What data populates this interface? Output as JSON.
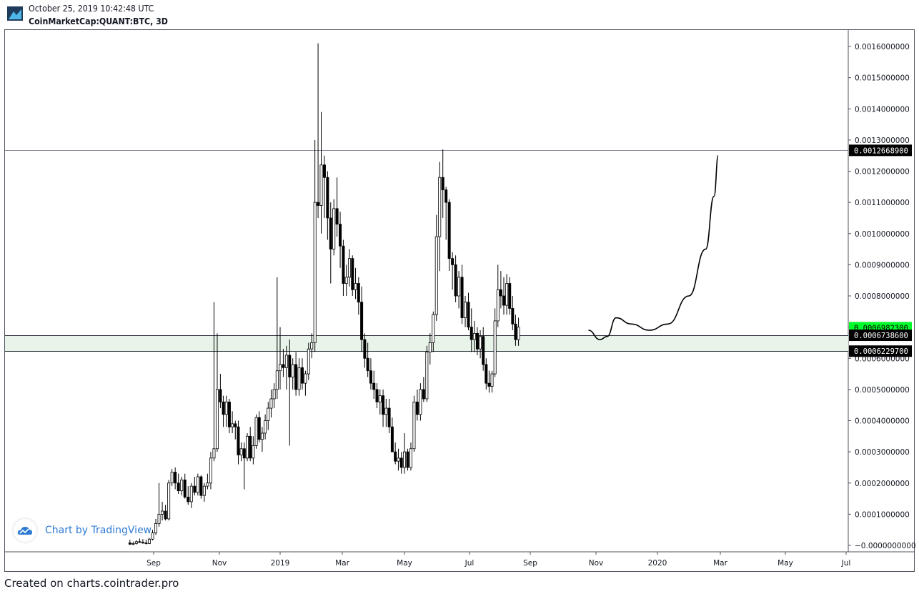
{
  "header": {
    "timestamp": "October 25, 2019 10:42:48 UTC",
    "symbol": "CoinMarketCap:QUANT:BTC, 3D"
  },
  "watermark": {
    "text": "Chart by TradingView",
    "icon": "tradingview-cloud-icon"
  },
  "footer": {
    "text": "Created on charts.cointrader.pro"
  },
  "colors": {
    "candle": "#000000",
    "zone_fill": "#e8f4ea",
    "line": "#787b86",
    "current_price_bg": "#00ff2a",
    "label_bg": "#000000"
  },
  "chart_data": {
    "type": "candlestick",
    "title": "",
    "xlabel": "",
    "ylabel": "",
    "ylim": [
      -1e-05,
      0.00163
    ],
    "y_ticks": [
      "0.0016000000",
      "0.0015000000",
      "0.0014000000",
      "0.0013000000",
      "0.0012000000",
      "0.0011000000",
      "0.0010000000",
      "0.0009000000",
      "0.0008000000",
      "0.0007000000",
      "0.0006000000",
      "0.0005000000",
      "0.0004000000",
      "0.0003000000",
      "0.0002000000",
      "0.0001000000",
      "−0.0000000000"
    ],
    "y_tick_values": [
      0.0016,
      0.0015,
      0.0014,
      0.0013,
      0.0012,
      0.0011,
      0.001,
      0.0009,
      0.0008,
      0.0007,
      0.0006,
      0.0005,
      0.0004,
      0.0003,
      0.0002,
      0.0001,
      0
    ],
    "x_ticks": [
      "Sep",
      "Nov",
      "2019",
      "Mar",
      "May",
      "Jul",
      "Sep",
      "Nov",
      "2020",
      "Mar",
      "May",
      "Jul"
    ],
    "x_tick_dates": [
      "2018-09-01",
      "2018-11-01",
      "2019-01-01",
      "2019-03-01",
      "2019-05-01",
      "2019-07-01",
      "2019-09-01",
      "2019-11-01",
      "2020-01-01",
      "2020-03-01",
      "2020-05-01",
      "2020-07-01"
    ],
    "horizontal_levels": [
      {
        "value": 0.00126689,
        "label": "0.0012668900"
      },
      {
        "value": 0.00067386,
        "label": "0.0006738600"
      },
      {
        "value": 0.00062297,
        "label": "0.0006229700"
      }
    ],
    "current_price": {
      "value": 0.00069823,
      "label": "0.0006982300"
    },
    "support_zone": [
      0.00062297,
      0.00067386
    ],
    "candles": [
      [
        "2018-08-10",
        8e-06,
        1.8e-05,
        1e-06,
        4e-06
      ],
      [
        "2018-08-13",
        4e-06,
        1.2e-05,
        1e-06,
        6e-06
      ],
      [
        "2018-08-16",
        6e-06,
        1.6e-05,
        3e-06,
        1.2e-05
      ],
      [
        "2018-08-19",
        1.2e-05,
        2.2e-05,
        8e-06,
        1e-05
      ],
      [
        "2018-08-22",
        1e-05,
        2e-05,
        5e-06,
        8e-06
      ],
      [
        "2018-08-25",
        8e-06,
        1.8e-05,
        3e-06,
        6e-06
      ],
      [
        "2018-08-28",
        6e-06,
        2.4e-05,
        4e-06,
        2e-05
      ],
      [
        "2018-08-31",
        2e-05,
        5e-05,
        1.6e-05,
        4e-05
      ],
      [
        "2018-09-03",
        4e-05,
        8.5e-05,
        3.4e-05,
        7e-05
      ],
      [
        "2018-09-06",
        7e-05,
        0.0002,
        6e-05,
        0.0001
      ],
      [
        "2018-09-09",
        0.0001,
        0.00014,
        8e-05,
        0.00011
      ],
      [
        "2018-09-12",
        0.00011,
        0.00013,
        8e-05,
        8.5e-05
      ],
      [
        "2018-09-15",
        8.5e-05,
        0.00021,
        8e-05,
        0.0002
      ],
      [
        "2018-09-18",
        0.0002,
        0.000245,
        0.00019,
        0.000235
      ],
      [
        "2018-09-21",
        0.000235,
        0.00025,
        0.00018,
        0.0002
      ],
      [
        "2018-09-24",
        0.0002,
        0.00023,
        0.000165,
        0.000175
      ],
      [
        "2018-09-27",
        0.000175,
        0.00022,
        0.00016,
        0.00021
      ],
      [
        "2018-09-30",
        0.00021,
        0.00023,
        0.00015,
        0.000155
      ],
      [
        "2018-10-03",
        0.000155,
        0.00019,
        0.00013,
        0.00014
      ],
      [
        "2018-10-06",
        0.00014,
        0.0002,
        0.00012,
        0.00019
      ],
      [
        "2018-10-09",
        0.00019,
        0.00022,
        0.00016,
        0.00017
      ],
      [
        "2018-10-12",
        0.00017,
        0.00023,
        0.00016,
        0.00022
      ],
      [
        "2018-10-15",
        0.00022,
        0.000225,
        0.00015,
        0.00016
      ],
      [
        "2018-10-18",
        0.00016,
        0.0002,
        0.00014,
        0.00019
      ],
      [
        "2018-10-21",
        0.00019,
        0.00023,
        0.00018,
        0.0002
      ],
      [
        "2018-10-24",
        0.0002,
        0.0003,
        0.00018,
        0.00028
      ],
      [
        "2018-10-27",
        0.00028,
        0.00078,
        0.00027,
        0.00031
      ],
      [
        "2018-10-30",
        0.00031,
        0.00068,
        0.0003,
        0.0005
      ],
      [
        "2018-11-02",
        0.0005,
        0.00055,
        0.00044,
        0.00046
      ],
      [
        "2018-11-05",
        0.00046,
        0.00048,
        0.00038,
        0.00042
      ],
      [
        "2018-11-08",
        0.00042,
        0.00048,
        0.00038,
        0.00046
      ],
      [
        "2018-11-11",
        0.00046,
        0.00047,
        0.00036,
        0.00038
      ],
      [
        "2018-11-14",
        0.00038,
        0.00043,
        0.00036,
        0.00039
      ],
      [
        "2018-11-17",
        0.00039,
        0.0004,
        0.00034,
        0.00038
      ],
      [
        "2018-11-20",
        0.00038,
        0.0004,
        0.00026,
        0.00029
      ],
      [
        "2018-11-23",
        0.00029,
        0.00033,
        0.00027,
        0.00031
      ],
      [
        "2018-11-26",
        0.00031,
        0.00033,
        0.00018,
        0.00028
      ],
      [
        "2018-11-29",
        0.00028,
        0.00036,
        0.00027,
        0.00035
      ],
      [
        "2018-12-02",
        0.00035,
        0.00038,
        0.00027,
        0.00028
      ],
      [
        "2018-12-05",
        0.00028,
        0.00035,
        0.00026,
        0.00032
      ],
      [
        "2018-12-08",
        0.00032,
        0.00042,
        0.00031,
        0.00041
      ],
      [
        "2018-12-11",
        0.00041,
        0.00043,
        0.00033,
        0.00034
      ],
      [
        "2018-12-14",
        0.00034,
        0.00038,
        0.0003,
        0.00036
      ],
      [
        "2018-12-17",
        0.00036,
        0.00042,
        0.00034,
        0.0004
      ],
      [
        "2018-12-20",
        0.0004,
        0.00046,
        0.00037,
        0.00044
      ],
      [
        "2018-12-23",
        0.00044,
        0.0005,
        0.00041,
        0.00047
      ],
      [
        "2018-12-26",
        0.00047,
        0.00052,
        0.00044,
        0.0005
      ],
      [
        "2018-12-29",
        0.0005,
        0.00086,
        0.00047,
        0.00056
      ],
      [
        "2019-01-01",
        0.00056,
        0.0007,
        0.0005,
        0.00058
      ],
      [
        "2019-01-04",
        0.00058,
        0.00063,
        0.00054,
        0.00057
      ],
      [
        "2019-01-07",
        0.00057,
        0.00064,
        0.0005,
        0.00061
      ],
      [
        "2019-01-10",
        0.00061,
        0.00066,
        0.00032,
        0.00054
      ],
      [
        "2019-01-13",
        0.00054,
        0.0006,
        0.0005,
        0.00058
      ],
      [
        "2019-01-16",
        0.00058,
        0.00062,
        0.00048,
        0.0005
      ],
      [
        "2019-01-19",
        0.0005,
        0.0006,
        0.00048,
        0.00057
      ],
      [
        "2019-01-22",
        0.00057,
        0.0006,
        0.0005,
        0.00052
      ],
      [
        "2019-01-25",
        0.00052,
        0.00056,
        0.00048,
        0.00055
      ],
      [
        "2019-01-28",
        0.00055,
        0.00065,
        0.00053,
        0.00063
      ],
      [
        "2019-01-31",
        0.00063,
        0.00068,
        0.0006,
        0.00065
      ],
      [
        "2019-02-03",
        0.00065,
        0.0013,
        0.00062,
        0.0011
      ],
      [
        "2019-02-06",
        0.0011,
        0.00161,
        0.00105,
        0.00109
      ],
      [
        "2019-02-09",
        0.00109,
        0.00139,
        0.001,
        0.00122
      ],
      [
        "2019-02-12",
        0.00122,
        0.00125,
        0.00105,
        0.00118
      ],
      [
        "2019-02-15",
        0.00118,
        0.0012,
        0.00098,
        0.00105
      ],
      [
        "2019-02-18",
        0.00105,
        0.0011,
        0.00084,
        0.00095
      ],
      [
        "2019-02-21",
        0.00095,
        0.00111,
        0.00093,
        0.00108
      ],
      [
        "2019-02-24",
        0.00108,
        0.00118,
        0.00099,
        0.00103
      ],
      [
        "2019-02-27",
        0.00103,
        0.00107,
        0.00089,
        0.00096
      ],
      [
        "2019-03-02",
        0.00096,
        0.00098,
        0.0008,
        0.00084
      ],
      [
        "2019-03-05",
        0.00084,
        0.0009,
        0.0008,
        0.00086
      ],
      [
        "2019-03-08",
        0.00086,
        0.00095,
        0.00083,
        0.00092
      ],
      [
        "2019-03-11",
        0.00092,
        0.00093,
        0.0008,
        0.00082
      ],
      [
        "2019-03-14",
        0.00082,
        0.00089,
        0.00079,
        0.00084
      ],
      [
        "2019-03-17",
        0.00084,
        0.00086,
        0.00074,
        0.00078
      ],
      [
        "2019-03-20",
        0.00078,
        0.00083,
        0.00062,
        0.00066
      ],
      [
        "2019-03-23",
        0.00066,
        0.00068,
        0.00057,
        0.0006
      ],
      [
        "2019-03-26",
        0.0006,
        0.00065,
        0.00054,
        0.00056
      ],
      [
        "2019-03-29",
        0.00056,
        0.0006,
        0.0005,
        0.00052
      ],
      [
        "2019-04-01",
        0.00052,
        0.00056,
        0.00047,
        0.0005
      ],
      [
        "2019-04-04",
        0.0005,
        0.00052,
        0.00044,
        0.00046
      ],
      [
        "2019-04-07",
        0.00046,
        0.0005,
        0.00042,
        0.00048
      ],
      [
        "2019-04-10",
        0.00048,
        0.0005,
        0.00038,
        0.00042
      ],
      [
        "2019-04-13",
        0.00042,
        0.00047,
        0.00038,
        0.00044
      ],
      [
        "2019-04-16",
        0.00044,
        0.00047,
        0.00036,
        0.00038
      ],
      [
        "2019-04-19",
        0.00038,
        0.00041,
        0.0003,
        0.0003
      ],
      [
        "2019-04-22",
        0.0003,
        0.00033,
        0.00026,
        0.00027
      ],
      [
        "2019-04-25",
        0.00027,
        0.00031,
        0.00024,
        0.00028
      ],
      [
        "2019-04-28",
        0.00028,
        0.0003,
        0.00023,
        0.00025
      ],
      [
        "2019-05-01",
        0.00025,
        0.00036,
        0.00023,
        0.0003
      ],
      [
        "2019-05-04",
        0.0003,
        0.00031,
        0.00024,
        0.00025
      ],
      [
        "2019-05-07",
        0.00025,
        0.00033,
        0.00024,
        0.00031
      ],
      [
        "2019-05-10",
        0.00031,
        0.00048,
        0.0003,
        0.00046
      ],
      [
        "2019-05-13",
        0.00046,
        0.0005,
        0.0004,
        0.00042
      ],
      [
        "2019-05-16",
        0.00042,
        0.00052,
        0.0004,
        0.0005
      ],
      [
        "2019-05-19",
        0.0005,
        0.00054,
        0.00046,
        0.00047
      ],
      [
        "2019-05-22",
        0.00047,
        0.00064,
        0.00046,
        0.00062
      ],
      [
        "2019-05-25",
        0.00062,
        0.00068,
        0.00058,
        0.00065
      ],
      [
        "2019-05-28",
        0.00065,
        0.00075,
        0.00062,
        0.00074
      ],
      [
        "2019-05-31",
        0.00074,
        0.00106,
        0.00072,
        0.00099
      ],
      [
        "2019-06-03",
        0.00099,
        0.00123,
        0.00088,
        0.00118
      ],
      [
        "2019-06-06",
        0.00118,
        0.00127,
        0.00105,
        0.00114
      ],
      [
        "2019-06-09",
        0.00114,
        0.00115,
        0.00098,
        0.0011
      ],
      [
        "2019-06-12",
        0.0011,
        0.00111,
        0.00088,
        0.00092
      ],
      [
        "2019-06-15",
        0.00092,
        0.00094,
        0.00082,
        0.0009
      ],
      [
        "2019-06-18",
        0.0009,
        0.00093,
        0.00078,
        0.0008
      ],
      [
        "2019-06-21",
        0.0008,
        0.00088,
        0.00076,
        0.00086
      ],
      [
        "2019-06-24",
        0.00086,
        0.0009,
        0.00071,
        0.00073
      ],
      [
        "2019-06-27",
        0.00073,
        0.0008,
        0.0007,
        0.00078
      ],
      [
        "2019-06-30",
        0.00078,
        0.00081,
        0.00069,
        0.0007
      ],
      [
        "2019-07-03",
        0.0007,
        0.00076,
        0.00062,
        0.00066
      ],
      [
        "2019-07-06",
        0.00066,
        0.00072,
        0.00062,
        0.00068
      ],
      [
        "2019-07-09",
        0.00068,
        0.0007,
        0.00061,
        0.00063
      ],
      [
        "2019-07-12",
        0.00063,
        0.00069,
        0.0006,
        0.00067
      ],
      [
        "2019-07-15",
        0.00067,
        0.0007,
        0.00056,
        0.00058
      ],
      [
        "2019-07-18",
        0.00058,
        0.0006,
        0.0005,
        0.00052
      ],
      [
        "2019-07-21",
        0.00052,
        0.00056,
        0.00049,
        0.00051
      ],
      [
        "2019-07-24",
        0.00051,
        0.00056,
        0.00049,
        0.00055
      ],
      [
        "2019-07-27",
        0.00055,
        0.00076,
        0.00054,
        0.00072
      ],
      [
        "2019-07-30",
        0.00072,
        0.0009,
        0.0007,
        0.00082
      ],
      [
        "2019-08-02",
        0.00082,
        0.00088,
        0.00076,
        0.0008
      ],
      [
        "2019-08-05",
        0.0008,
        0.00086,
        0.00074,
        0.00077
      ],
      [
        "2019-08-08",
        0.00077,
        0.00087,
        0.00074,
        0.00084
      ],
      [
        "2019-08-11",
        0.00084,
        0.00086,
        0.00074,
        0.00076
      ],
      [
        "2019-08-14",
        0.00076,
        0.0008,
        0.00069,
        0.00071
      ],
      [
        "2019-08-17",
        0.00071,
        0.00074,
        0.00064,
        0.00066
      ],
      [
        "2019-08-20",
        0.00066,
        0.00073,
        0.00064,
        0.0007
      ]
    ],
    "projection": [
      [
        "2019-10-25",
        0.00069
      ],
      [
        "2019-11-05",
        0.00066
      ],
      [
        "2019-11-12",
        0.00067
      ],
      [
        "2019-11-21",
        0.00073
      ],
      [
        "2019-12-06",
        0.00071
      ],
      [
        "2019-12-24",
        0.00069
      ],
      [
        "2020-01-11",
        0.00071
      ],
      [
        "2020-01-31",
        0.0008
      ],
      [
        "2020-02-16",
        0.00095
      ],
      [
        "2020-02-24",
        0.00112
      ],
      [
        "2020-02-28",
        0.00125
      ]
    ]
  }
}
